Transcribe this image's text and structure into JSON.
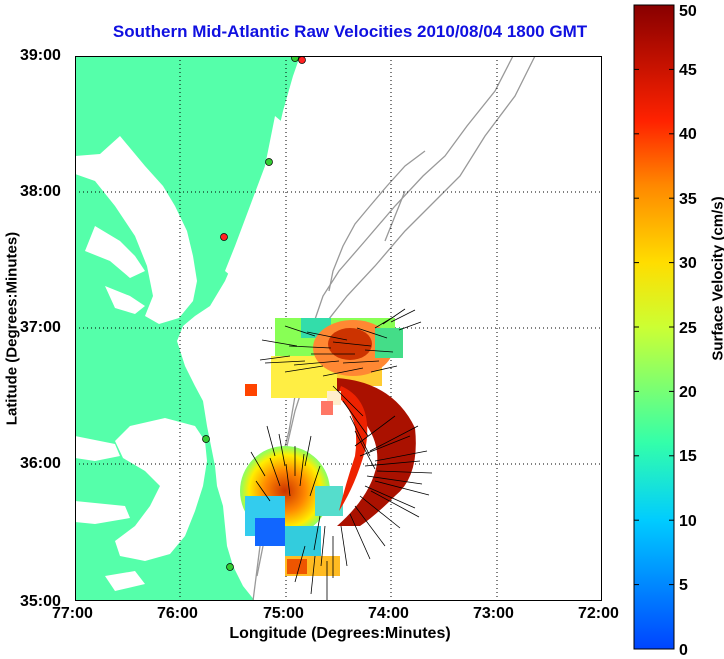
{
  "title": "Southern Mid-Atlantic Raw Velocities 2010/08/04 1800 GMT",
  "xlabel": "Longitude (Degrees:Minutes)",
  "ylabel": "Latitude (Degrees:Minutes)",
  "colorbar": {
    "label": "Surface Velocity (cm/s)",
    "ticks": [
      "0",
      "5",
      "10",
      "15",
      "20",
      "25",
      "30",
      "35",
      "40",
      "45",
      "50"
    ],
    "min": 0,
    "max": 50
  },
  "x_ticks": [
    "77:00",
    "76:00",
    "75:00",
    "74:00",
    "73:00",
    "72:00"
  ],
  "y_ticks": [
    "39:00",
    "38:00",
    "37:00",
    "36:00",
    "35:00"
  ],
  "colors": {
    "title": "#1010e0",
    "land": "#55ffaa",
    "bathymetry": "#999999",
    "site_active": "#33cc33",
    "site_inactive": "#ff2222"
  }
}
